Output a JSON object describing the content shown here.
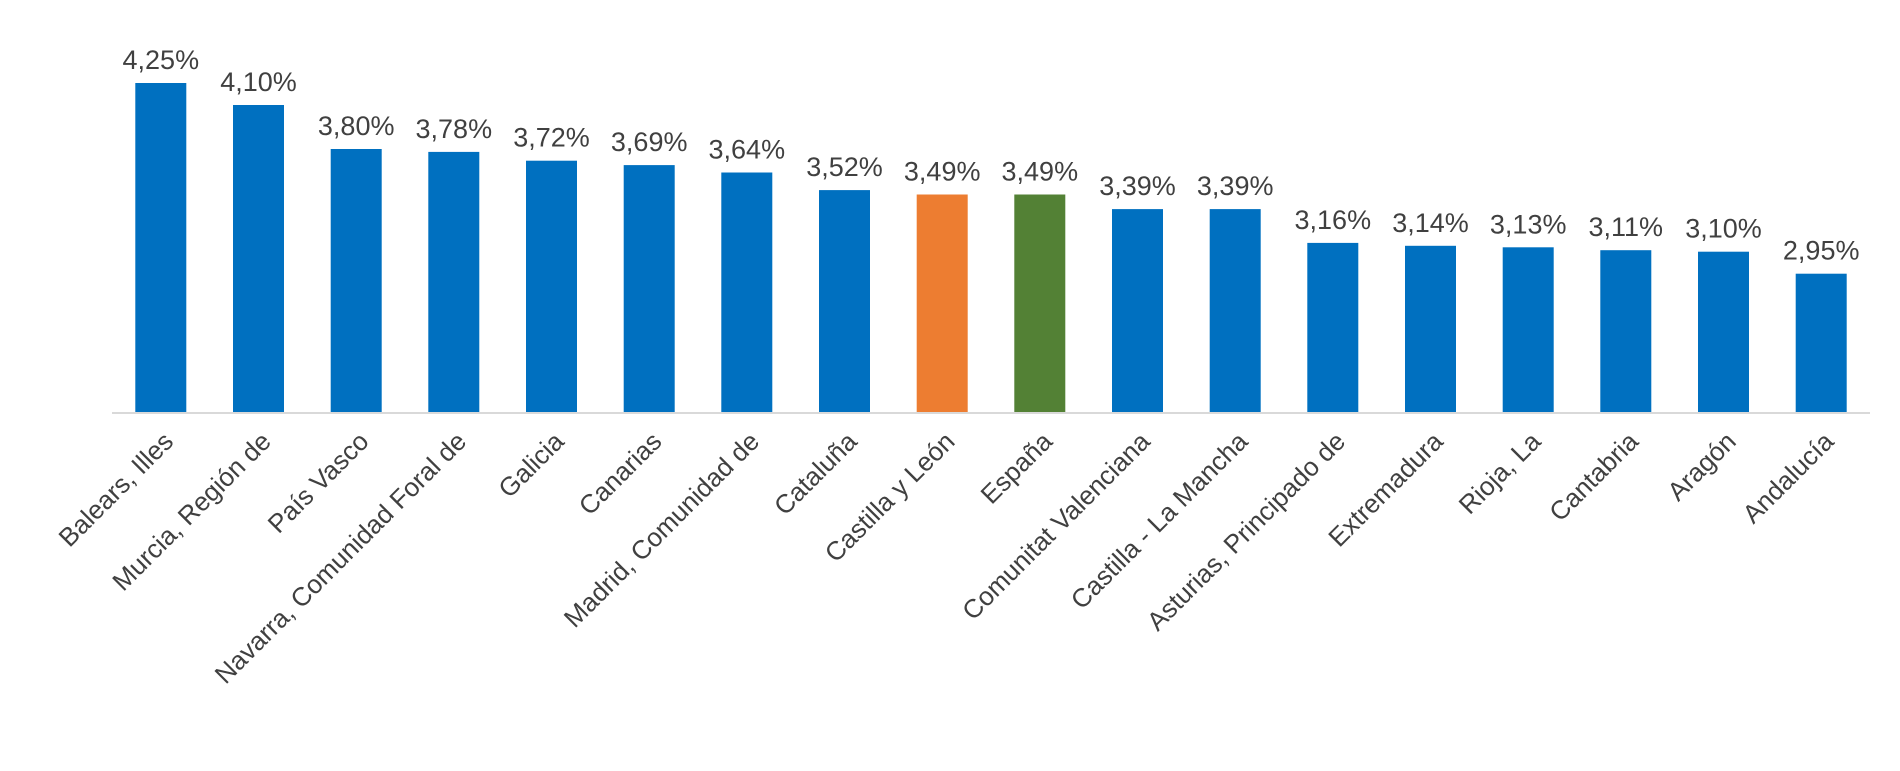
{
  "chart_data": {
    "type": "bar",
    "title": "",
    "xlabel": "",
    "ylabel": "",
    "ylim": [
      2.0,
      4.25
    ],
    "grid": false,
    "legend": "none",
    "colors": {
      "default": "#0070C0",
      "highlight": "#ED7D31",
      "national": "#538135",
      "axis": "#D9D9D9",
      "text": "#404040"
    },
    "categories": [
      "Balears, Illes",
      "Murcia, Región de",
      "País Vasco",
      "Navarra, Comunidad Foral de",
      "Galicia",
      "Canarias",
      "Madrid, Comunidad de",
      "Cataluña",
      "Castilla y León",
      "España",
      "Comunitat Valenciana",
      "Castilla - La Mancha",
      "Asturias, Principado de",
      "Extremadura",
      "Rioja, La",
      "Cantabria",
      "Aragón",
      "Andalucía"
    ],
    "values": [
      4.25,
      4.1,
      3.8,
      3.78,
      3.72,
      3.69,
      3.64,
      3.52,
      3.49,
      3.49,
      3.39,
      3.39,
      3.16,
      3.14,
      3.13,
      3.11,
      3.1,
      2.95
    ],
    "value_labels": [
      "4,25%",
      "4,10%",
      "3,80%",
      "3,78%",
      "3,72%",
      "3,69%",
      "3,64%",
      "3,52%",
      "3,49%",
      "3,49%",
      "3,39%",
      "3,39%",
      "3,16%",
      "3,14%",
      "3,13%",
      "3,11%",
      "3,10%",
      "2,95%"
    ],
    "bar_colors": [
      "default",
      "default",
      "default",
      "default",
      "default",
      "default",
      "default",
      "default",
      "highlight",
      "national",
      "default",
      "default",
      "default",
      "default",
      "default",
      "default",
      "default",
      "default"
    ]
  }
}
